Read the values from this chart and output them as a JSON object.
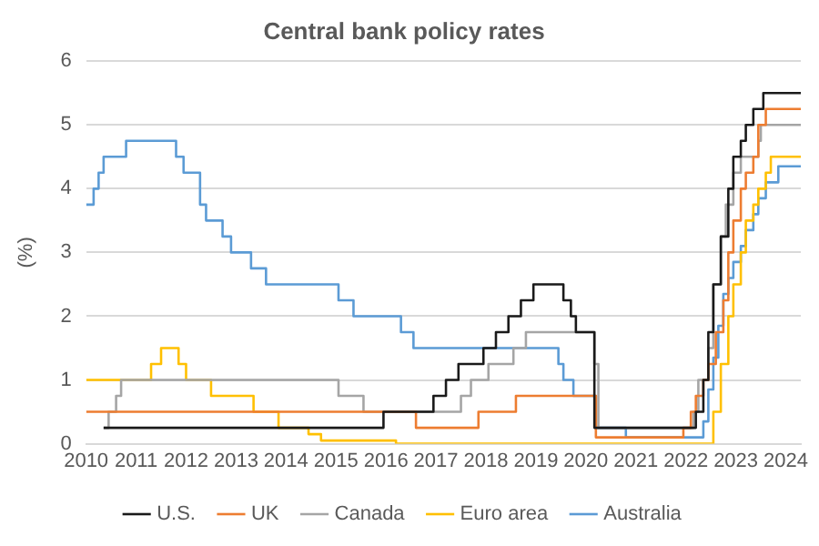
{
  "chart_data": {
    "type": "step",
    "title": "Central bank policy rates",
    "ylabel": "(%)",
    "xlim": [
      2010,
      2024.3
    ],
    "xticks": [
      2010,
      2011,
      2012,
      2013,
      2014,
      2015,
      2016,
      2017,
      2018,
      2019,
      2020,
      2021,
      2022,
      2023,
      2024
    ],
    "ylim": [
      0,
      6
    ],
    "yticks": [
      0,
      1,
      2,
      3,
      4,
      5,
      6
    ],
    "grid": "y",
    "legend": "bottom",
    "series": [
      {
        "name": "U.S.",
        "color": "#1a1a1a",
        "x": [
          2010.35,
          2015.95,
          2016.95,
          2017.2,
          2017.45,
          2017.95,
          2018.2,
          2018.45,
          2018.7,
          2018.95,
          2019.55,
          2019.7,
          2019.8,
          2020.17,
          2022.2,
          2022.35,
          2022.45,
          2022.55,
          2022.7,
          2022.85,
          2022.95,
          2023.1,
          2023.2,
          2023.35,
          2023.55,
          2024.3
        ],
        "values": [
          0.25,
          0.5,
          0.75,
          1,
          1.25,
          1.5,
          1.75,
          2,
          2.25,
          2.5,
          2.25,
          2,
          1.75,
          0.25,
          0.5,
          1,
          1.75,
          2.5,
          3.25,
          4,
          4.5,
          4.75,
          5,
          5.25,
          5.5,
          5.5
        ]
      },
      {
        "name": "UK",
        "color": "#ed7d31",
        "x": [
          2010,
          2016.6,
          2017.85,
          2018.6,
          2020.2,
          2021.95,
          2022.1,
          2022.2,
          2022.35,
          2022.45,
          2022.6,
          2022.75,
          2022.85,
          2022.95,
          2023.1,
          2023.2,
          2023.35,
          2023.45,
          2023.6,
          2024.3
        ],
        "values": [
          0.5,
          0.25,
          0.5,
          0.75,
          0.1,
          0.25,
          0.5,
          0.75,
          1,
          1.25,
          1.75,
          2.25,
          3,
          3.5,
          4,
          4.25,
          4.5,
          5,
          5.25,
          5.25
        ]
      },
      {
        "name": "Canada",
        "color": "#a5a5a5",
        "x": [
          2010.35,
          2010.45,
          2010.6,
          2010.7,
          2015.05,
          2015.55,
          2017.5,
          2017.7,
          2018.05,
          2018.55,
          2018.8,
          2020.17,
          2020.25,
          2022.15,
          2022.25,
          2022.45,
          2022.55,
          2022.7,
          2022.8,
          2022.95,
          2023.1,
          2023.45,
          2023.5,
          2024.3
        ],
        "values": [
          0.25,
          0.5,
          0.75,
          1,
          0.75,
          0.5,
          0.75,
          1,
          1.25,
          1.5,
          1.75,
          1.25,
          0.25,
          0.5,
          1,
          1.5,
          2.5,
          3.25,
          3.75,
          4.25,
          4.5,
          4.75,
          5,
          5
        ]
      },
      {
        "name": "Euro area",
        "color": "#ffc000",
        "x": [
          2010,
          2011.3,
          2011.5,
          2011.85,
          2012,
          2012.5,
          2013.35,
          2013.85,
          2014.45,
          2014.7,
          2016.2,
          2022.55,
          2022.7,
          2022.85,
          2022.95,
          2023.1,
          2023.2,
          2023.35,
          2023.45,
          2023.6,
          2023.7,
          2024.3
        ],
        "values": [
          1,
          1.25,
          1.5,
          1.25,
          1,
          0.75,
          0.5,
          0.25,
          0.15,
          0.05,
          0,
          0.5,
          1.25,
          2,
          2.5,
          3,
          3.5,
          3.75,
          4,
          4.25,
          4.5,
          4.5
        ]
      },
      {
        "name": "Australia",
        "color": "#5b9bd5",
        "x": [
          2010,
          2010.15,
          2010.25,
          2010.35,
          2010.8,
          2011.8,
          2011.95,
          2012.28,
          2012.4,
          2012.73,
          2012.9,
          2013.3,
          2013.6,
          2015.05,
          2015.35,
          2016.3,
          2016.55,
          2019.45,
          2019.55,
          2019.75,
          2020.2,
          2020.8,
          2022.35,
          2022.45,
          2022.55,
          2022.65,
          2022.75,
          2022.85,
          2022.95,
          2023.1,
          2023.2,
          2023.35,
          2023.45,
          2023.6,
          2023.85,
          2024.3
        ],
        "values": [
          3.75,
          4,
          4.25,
          4.5,
          4.75,
          4.5,
          4.25,
          3.75,
          3.5,
          3.25,
          3,
          2.75,
          2.5,
          2.25,
          2,
          1.75,
          1.5,
          1.25,
          1,
          0.75,
          0.25,
          0.1,
          0.35,
          0.85,
          1.35,
          1.85,
          2.35,
          2.6,
          2.85,
          3.1,
          3.35,
          3.6,
          3.85,
          4.1,
          4.35,
          4.35
        ]
      }
    ]
  }
}
